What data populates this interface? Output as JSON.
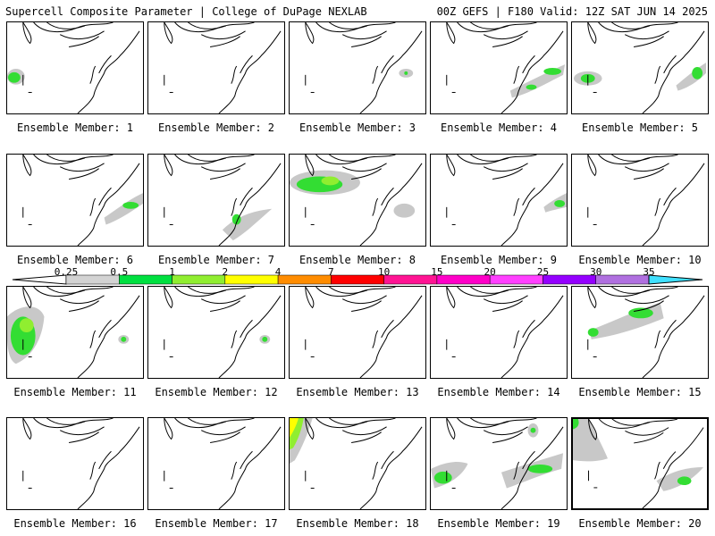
{
  "header": {
    "left": "Supercell Composite Parameter | College of DuPage NEXLAB",
    "right": "00Z GEFS | F180 Valid: 12Z SAT JUN 14 2025"
  },
  "members": [
    {
      "label": "Ensemble Member: 1",
      "blobs": [
        "lo-left-green"
      ]
    },
    {
      "label": "Ensemble Member: 2",
      "blobs": []
    },
    {
      "label": "Ensemble Member: 3",
      "blobs": [
        "right-gray-small"
      ]
    },
    {
      "label": "Ensemble Member: 4",
      "blobs": [
        "ne-gray-green"
      ]
    },
    {
      "label": "Ensemble Member: 5",
      "blobs": [
        "center-green",
        "right-green"
      ]
    },
    {
      "label": "Ensemble Member: 6",
      "blobs": [
        "right-band-green"
      ]
    },
    {
      "label": "Ensemble Member: 7",
      "blobs": [
        "bottom-gray-green"
      ]
    },
    {
      "label": "Ensemble Member: 8",
      "blobs": [
        "top-left-green"
      ]
    },
    {
      "label": "Ensemble Member: 9",
      "blobs": [
        "right-green-small"
      ]
    },
    {
      "label": "Ensemble Member: 10",
      "blobs": []
    },
    {
      "label": "Ensemble Member: 11",
      "blobs": [
        "left-large-green",
        "small-green-mid"
      ]
    },
    {
      "label": "Ensemble Member: 12",
      "blobs": [
        "small-green-mid"
      ]
    },
    {
      "label": "Ensemble Member: 13",
      "blobs": []
    },
    {
      "label": "Ensemble Member: 14",
      "blobs": []
    },
    {
      "label": "Ensemble Member: 15",
      "blobs": [
        "top-green-band"
      ]
    },
    {
      "label": "Ensemble Member: 16",
      "blobs": []
    },
    {
      "label": "Ensemble Member: 17",
      "blobs": []
    },
    {
      "label": "Ensemble Member: 18",
      "blobs": [
        "top-left-yellow"
      ]
    },
    {
      "label": "Ensemble Member: 19",
      "blobs": [
        "multi-green"
      ]
    },
    {
      "label": "Ensemble Member: 20",
      "blobs": [
        "left-gray",
        "bottom-green"
      ]
    }
  ],
  "selected_member": 20,
  "colorbar": {
    "ticks": [
      "0.25",
      "0.5",
      "1",
      "2",
      "4",
      "7",
      "10",
      "15",
      "20",
      "25",
      "30",
      "35"
    ],
    "colors": [
      "#d3d3d3",
      "#00e040",
      "#90ee30",
      "#ffff00",
      "#ff8c00",
      "#ff0000",
      "#ff1493",
      "#ff00c8",
      "#ff40ff",
      "#9400ff",
      "#b070e0",
      "#40e0ff"
    ]
  }
}
